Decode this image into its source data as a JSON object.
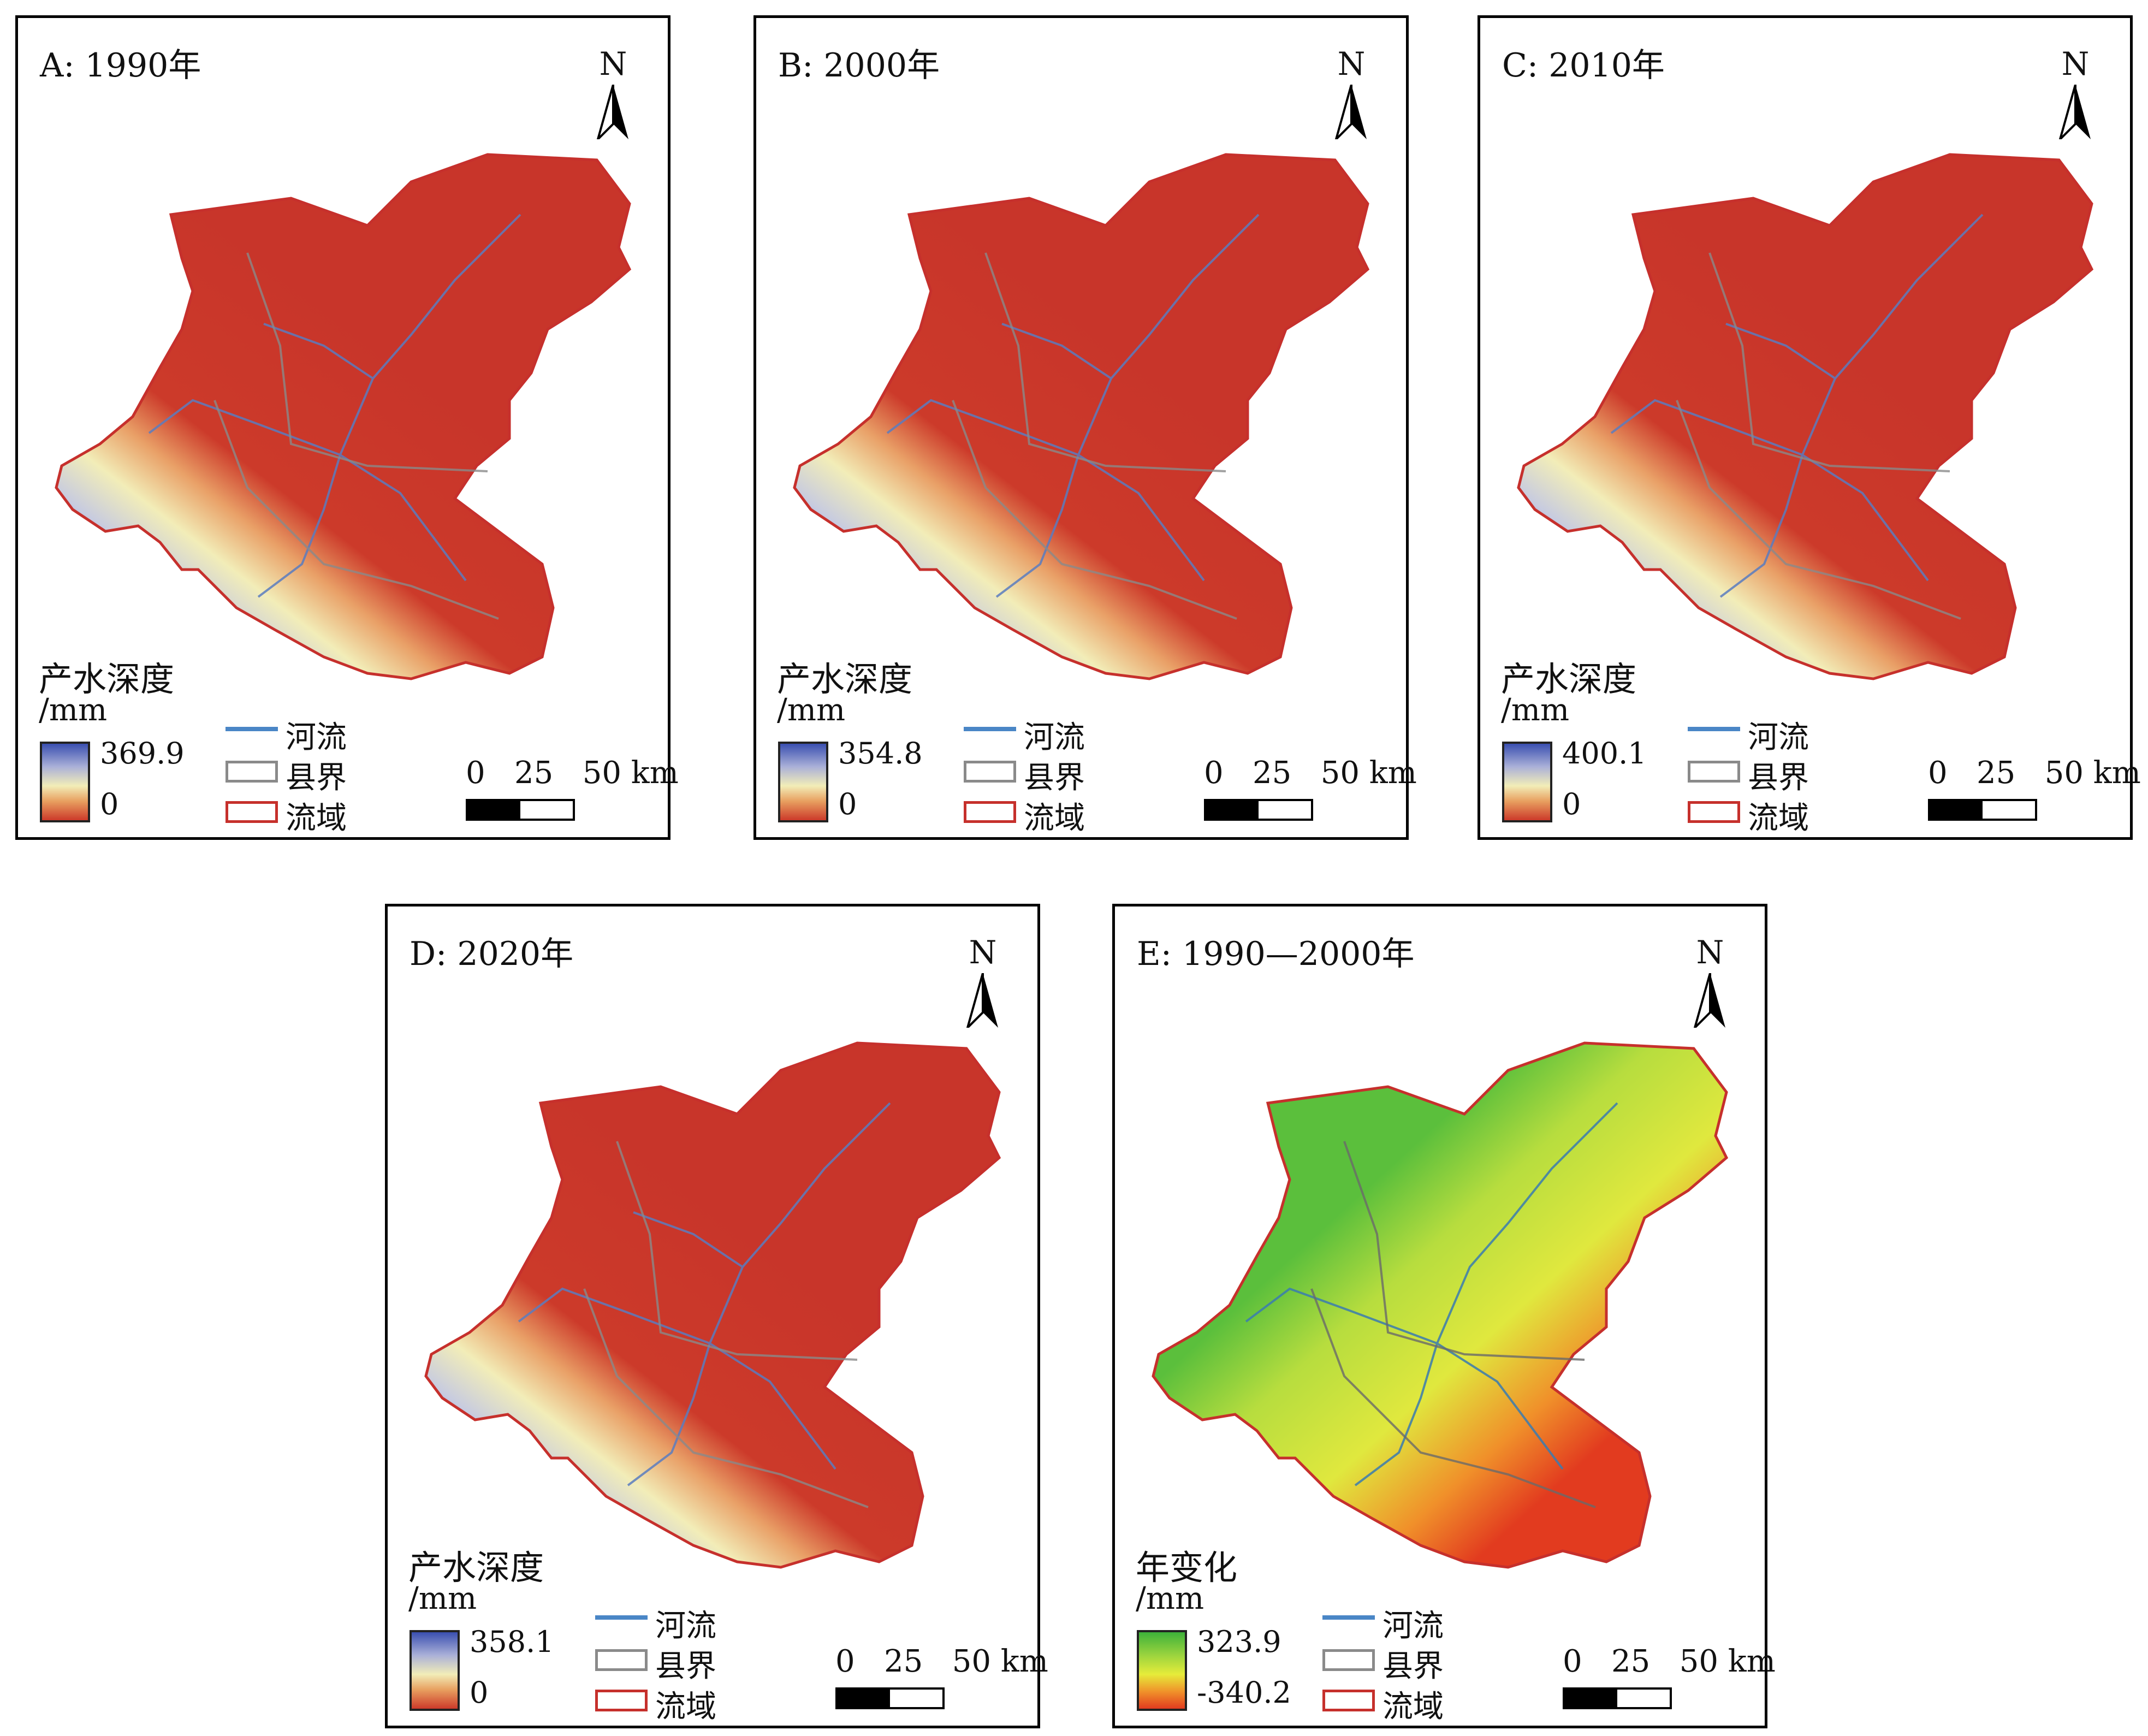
{
  "panels": [
    {
      "title": "A: 1990年",
      "legend_title": "产水深度",
      "unit": "/mm",
      "max": "369.9",
      "min": "0",
      "type": "depth"
    },
    {
      "title": "B: 2000年",
      "legend_title": "产水深度",
      "unit": "/mm",
      "max": "354.8",
      "min": "0",
      "type": "depth"
    },
    {
      "title": "C: 2010年",
      "legend_title": "产水深度",
      "unit": "/mm",
      "max": "400.1",
      "min": "0",
      "type": "depth"
    },
    {
      "title": "D: 2020年",
      "legend_title": "产水深度",
      "unit": "/mm",
      "max": "358.1",
      "min": "0",
      "type": "depth"
    },
    {
      "title": "E: 1990—2000年",
      "legend_title": "年变化",
      "unit": "/mm",
      "max": "323.9",
      "min": "-340.2",
      "type": "change"
    }
  ],
  "north_label": "N",
  "legend_items": {
    "river": "河流",
    "county": "县界",
    "basin": "流域"
  },
  "scale_labels": {
    "zero": "0",
    "mid": "25",
    "end": "50 km"
  },
  "colors": {
    "depth_low": "#cc3a2a",
    "depth_mid": "#f2edb8",
    "depth_high": "#3a4fb0",
    "change_high": "#3db13a",
    "change_mid": "#d9e84a",
    "change_low": "#e23b1f",
    "river": "#4a86c6",
    "county": "#8a8a8a",
    "basin": "#c6302c"
  }
}
